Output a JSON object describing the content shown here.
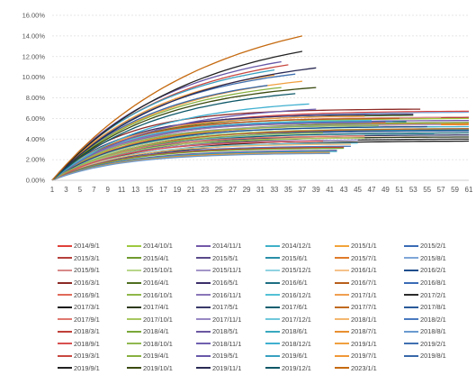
{
  "chart_data": {
    "type": "line",
    "title": "",
    "xlabel": "",
    "ylabel": "",
    "x": [
      1,
      2,
      3,
      4,
      5,
      6,
      7,
      8,
      9,
      10,
      11,
      12,
      13,
      14,
      15,
      16,
      17,
      18,
      19,
      20,
      21,
      22,
      23,
      24,
      25,
      26,
      27,
      28,
      29,
      30,
      31,
      32,
      33,
      34,
      35,
      36,
      37,
      38,
      39,
      40,
      41,
      42,
      43,
      44,
      45,
      46,
      47,
      48,
      49,
      50,
      51,
      52,
      53,
      54,
      55,
      56,
      57,
      58,
      59,
      60,
      61
    ],
    "xticks": [
      1,
      3,
      5,
      7,
      9,
      11,
      13,
      15,
      17,
      19,
      21,
      23,
      25,
      27,
      29,
      31,
      33,
      35,
      37,
      39,
      41,
      43,
      45,
      47,
      49,
      51,
      53,
      55,
      57,
      59,
      61
    ],
    "ylim": [
      0,
      16
    ],
    "yticks": [
      "0.00%",
      "2.00%",
      "4.00%",
      "6.00%",
      "8.00%",
      "10.00%",
      "12.00%",
      "14.00%",
      "16.00%"
    ],
    "grid": true,
    "legend_position": "bottom",
    "series_model": "cumulative curves: value(t) = final * (1 - exp(-t / tau)), flat after last period",
    "series": [
      {
        "name": "2014/9/1",
        "color": "#e0413a",
        "final": 6.7,
        "len": 61,
        "tau": 12
      },
      {
        "name": "2014/10/1",
        "color": "#9ec93e",
        "final": 6.0,
        "len": 61,
        "tau": 12
      },
      {
        "name": "2014/11/1",
        "color": "#7359a8",
        "final": 5.8,
        "len": 61,
        "tau": 11
      },
      {
        "name": "2014/12/1",
        "color": "#3fb0c8",
        "final": 5.2,
        "len": 61,
        "tau": 11
      },
      {
        "name": "2015/1/1",
        "color": "#f2a33a",
        "final": 5.5,
        "len": 61,
        "tau": 12
      },
      {
        "name": "2015/2/1",
        "color": "#3a6bb5",
        "final": 5.0,
        "len": 61,
        "tau": 11
      },
      {
        "name": "2015/3/1",
        "color": "#b5403b",
        "final": 6.1,
        "len": 61,
        "tau": 11
      },
      {
        "name": "2015/4/1",
        "color": "#6f9a2f",
        "final": 5.6,
        "len": 61,
        "tau": 12
      },
      {
        "name": "2015/5/1",
        "color": "#5a4a8a",
        "final": 4.8,
        "len": 61,
        "tau": 10
      },
      {
        "name": "2015/6/1",
        "color": "#2a8fa8",
        "final": 4.9,
        "len": 61,
        "tau": 10
      },
      {
        "name": "2015/7/1",
        "color": "#e07b2a",
        "final": 5.4,
        "len": 61,
        "tau": 11
      },
      {
        "name": "2015/8/1",
        "color": "#7fa6d8",
        "final": 6.6,
        "len": 61,
        "tau": 12
      },
      {
        "name": "2015/9/1",
        "color": "#d88a8a",
        "final": 6.1,
        "len": 57,
        "tau": 11
      },
      {
        "name": "2015/10/1",
        "color": "#b9d68a",
        "final": 5.0,
        "len": 57,
        "tau": 11
      },
      {
        "name": "2015/11/1",
        "color": "#a496c9",
        "final": 5.4,
        "len": 57,
        "tau": 10
      },
      {
        "name": "2015/12/1",
        "color": "#8fd3e2",
        "final": 4.5,
        "len": 56,
        "tau": 10
      },
      {
        "name": "2016/1/1",
        "color": "#f5c28a",
        "final": 4.2,
        "len": 55,
        "tau": 10
      },
      {
        "name": "2016/2/1",
        "color": "#1f4e8c",
        "final": 5.2,
        "len": 55,
        "tau": 11
      },
      {
        "name": "2016/3/1",
        "color": "#8c2a26",
        "final": 6.9,
        "len": 54,
        "tau": 10
      },
      {
        "name": "2016/4/1",
        "color": "#4f6f20",
        "final": 6.3,
        "len": 53,
        "tau": 11
      },
      {
        "name": "2016/5/1",
        "color": "#3c2f6a",
        "final": 6.4,
        "len": 53,
        "tau": 10
      },
      {
        "name": "2016/6/1",
        "color": "#1d6e82",
        "final": 5.7,
        "len": 52,
        "tau": 10
      },
      {
        "name": "2016/7/1",
        "color": "#b85f1c",
        "final": 6.0,
        "len": 51,
        "tau": 10
      },
      {
        "name": "2016/8/1",
        "color": "#3a6bb5",
        "final": 5.7,
        "len": 50,
        "tau": 10
      },
      {
        "name": "2016/9/1",
        "color": "#e06a5a",
        "final": 5.6,
        "len": 49,
        "tau": 10
      },
      {
        "name": "2016/10/1",
        "color": "#8fb84a",
        "final": 5.3,
        "len": 48,
        "tau": 10
      },
      {
        "name": "2016/11/1",
        "color": "#8a76b8",
        "final": 5.6,
        "len": 47,
        "tau": 10
      },
      {
        "name": "2016/12/1",
        "color": "#53c0d6",
        "final": 5.8,
        "len": 47,
        "tau": 10
      },
      {
        "name": "2017/1/1",
        "color": "#f0a050",
        "final": 6.2,
        "len": 46,
        "tau": 10
      },
      {
        "name": "2017/2/1",
        "color": "#2b2b2b",
        "final": 4.0,
        "len": 61,
        "tau": 13
      },
      {
        "name": "2017/3/1",
        "color": "#1b1b1b",
        "final": 3.8,
        "len": 61,
        "tau": 13
      },
      {
        "name": "2017/4/1",
        "color": "#2e3a1e",
        "final": 4.2,
        "len": 61,
        "tau": 12
      },
      {
        "name": "2017/5/1",
        "color": "#3a3a6a",
        "final": 4.4,
        "len": 61,
        "tau": 12
      },
      {
        "name": "2017/6/1",
        "color": "#106070",
        "final": 4.6,
        "len": 61,
        "tau": 12
      },
      {
        "name": "2017/7/1",
        "color": "#c06a20",
        "final": 5.0,
        "len": 61,
        "tau": 12
      },
      {
        "name": "2017/8/1",
        "color": "#2a5a9a",
        "final": 4.8,
        "len": 61,
        "tau": 12
      },
      {
        "name": "2017/9/1",
        "color": "#e07870",
        "final": 4.3,
        "len": 46,
        "tau": 10
      },
      {
        "name": "2017/10/1",
        "color": "#a8c860",
        "final": 4.1,
        "len": 46,
        "tau": 10
      },
      {
        "name": "2017/11/1",
        "color": "#9888c4",
        "final": 3.9,
        "len": 45,
        "tau": 10
      },
      {
        "name": "2017/12/1",
        "color": "#70c8dc",
        "final": 3.6,
        "len": 45,
        "tau": 10
      },
      {
        "name": "2018/1/1",
        "color": "#f4b870",
        "final": 3.5,
        "len": 44,
        "tau": 10
      },
      {
        "name": "2018/2/1",
        "color": "#4a7ac0",
        "final": 3.3,
        "len": 44,
        "tau": 10
      },
      {
        "name": "2018/3/1",
        "color": "#c04038",
        "final": 3.2,
        "len": 43,
        "tau": 10
      },
      {
        "name": "2018/4/1",
        "color": "#7aa838",
        "final": 3.1,
        "len": 43,
        "tau": 10
      },
      {
        "name": "2018/5/1",
        "color": "#6a58a0",
        "final": 2.9,
        "len": 42,
        "tau": 10
      },
      {
        "name": "2018/6/1",
        "color": "#38a8c0",
        "final": 2.8,
        "len": 42,
        "tau": 10
      },
      {
        "name": "2018/7/1",
        "color": "#e89030",
        "final": 2.7,
        "len": 41,
        "tau": 10
      },
      {
        "name": "2018/8/1",
        "color": "#6a9ad0",
        "final": 2.6,
        "len": 41,
        "tau": 10
      },
      {
        "name": "2018/9/1",
        "color": "#d85050",
        "final": 3.8,
        "len": 40,
        "tau": 10
      },
      {
        "name": "2018/10/1",
        "color": "#90b850",
        "final": 4.6,
        "len": 40,
        "tau": 11
      },
      {
        "name": "2018/11/1",
        "color": "#7060b0",
        "final": 6.9,
        "len": 39,
        "tau": 14
      },
      {
        "name": "2018/12/1",
        "color": "#40b0d0",
        "final": 7.4,
        "len": 38,
        "tau": 14
      },
      {
        "name": "2019/1/1",
        "color": "#f0a040",
        "final": 9.6,
        "len": 37,
        "tau": 16
      },
      {
        "name": "2019/2/1",
        "color": "#4070b0",
        "final": 10.3,
        "len": 36,
        "tau": 16
      },
      {
        "name": "2019/3/1",
        "color": "#c84840",
        "final": 11.2,
        "len": 35,
        "tau": 17
      },
      {
        "name": "2019/4/1",
        "color": "#88b040",
        "final": 9.0,
        "len": 34,
        "tau": 15
      },
      {
        "name": "2019/5/1",
        "color": "#6858a8",
        "final": 11.5,
        "len": 34,
        "tau": 17
      },
      {
        "name": "2019/6/1",
        "color": "#38a0c0",
        "final": 10.7,
        "len": 33,
        "tau": 16
      },
      {
        "name": "2019/7/1",
        "color": "#f09838",
        "final": 10.2,
        "len": 33,
        "tau": 16
      },
      {
        "name": "2019/8/1",
        "color": "#3868a8",
        "final": 9.2,
        "len": 32,
        "tau": 15
      },
      {
        "name": "2019/9/1",
        "color": "#222222",
        "final": 12.5,
        "len": 37,
        "tau": 20
      },
      {
        "name": "2019/10/1",
        "color": "#3a4a10",
        "final": 9.0,
        "len": 39,
        "tau": 15
      },
      {
        "name": "2019/11/1",
        "color": "#2a2a55",
        "final": 10.9,
        "len": 39,
        "tau": 18
      },
      {
        "name": "2019/12/1",
        "color": "#0e5868",
        "final": 8.4,
        "len": 36,
        "tau": 15
      },
      {
        "name": "2023/1/1",
        "color": "#c56a10",
        "final": 14.0,
        "len": 37,
        "tau": 22
      }
    ]
  }
}
